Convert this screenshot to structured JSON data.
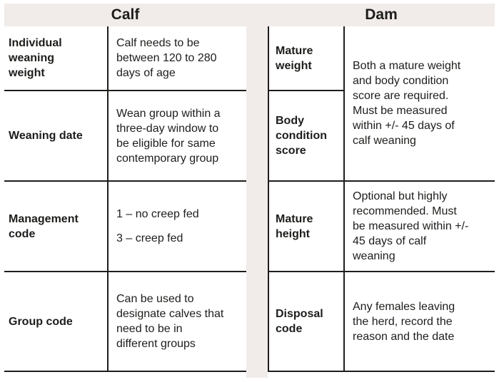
{
  "colors": {
    "band_background": "#f1ebea",
    "rule_line": "#1d1d1b",
    "text": "#1d1d1b",
    "page_background": "#ffffff"
  },
  "calf": {
    "header": "Calf",
    "rows": [
      {
        "label": "Individual weaning weight",
        "value": "Calf needs to be between 120 to 280 days of age"
      },
      {
        "label": "Weaning date",
        "value": "Wean group within a three-day window to be eligible for same contemporary group"
      },
      {
        "label": "Management code",
        "values": [
          "1 – no creep fed",
          "3 – creep fed"
        ]
      },
      {
        "label": "Group code",
        "value": "Can be used to designate calves that need to be in different groups"
      }
    ]
  },
  "dam": {
    "header": "Dam",
    "rows": [
      {
        "label": "Mature weight"
      },
      {
        "label": "Body condition score"
      },
      {
        "label": "Mature height",
        "value": "Optional but highly recommended. Must be measured within +/- 45 days of calf weaning"
      },
      {
        "label": "Disposal code",
        "value": "Any females leaving the herd, record the reason and the date"
      }
    ],
    "merged_value": "Both a mature weight and body condition score are required. Must be measured within +/- 45 days of calf weaning"
  }
}
